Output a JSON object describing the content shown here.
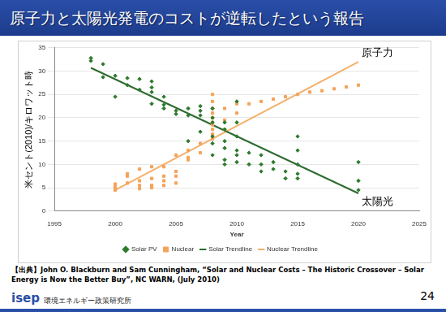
{
  "header": {
    "title": "原子力と太陽光発電のコストが逆転したという報告"
  },
  "chart_data": {
    "type": "scatter",
    "x_label": "Year",
    "y_label": "米セント(2010)/キロワット時",
    "xlim": [
      1995,
      2025
    ],
    "xticks": [
      1995,
      2000,
      2005,
      2010,
      2015,
      2020,
      2025
    ],
    "ylim": [
      0,
      35
    ],
    "yticks": [
      0,
      5,
      10,
      15,
      20,
      25,
      30,
      35
    ],
    "grid": true,
    "legend": "bottom",
    "series": [
      {
        "name": "Solar PV",
        "type": "scatter",
        "color": "#2d7a2d",
        "marker": "diamond",
        "x": [
          1998,
          1998,
          1999,
          1999,
          2000,
          2000,
          2001,
          2001,
          2002,
          2002,
          2003,
          2003,
          2003,
          2003,
          2004,
          2004,
          2004,
          2005,
          2005,
          2006,
          2006,
          2006,
          2007,
          2007,
          2007,
          2007,
          2008,
          2008,
          2008,
          2008,
          2008,
          2008,
          2009,
          2009,
          2009,
          2009,
          2009,
          2009,
          2010,
          2010,
          2010,
          2010,
          2010,
          2010,
          2011,
          2011,
          2012,
          2012,
          2012,
          2013,
          2013,
          2014,
          2014,
          2015,
          2015,
          2015,
          2015,
          2015,
          2020,
          2020,
          2020
        ],
        "values": [
          32.8,
          32.2,
          31.5,
          28.7,
          29,
          24.5,
          28.5,
          27,
          28.3,
          26,
          26.5,
          27.8,
          25.5,
          23,
          24.5,
          22.8,
          22,
          21.5,
          20.8,
          22,
          20.5,
          15,
          22.5,
          21.5,
          20.5,
          17,
          22,
          20,
          19,
          16,
          14.5,
          12,
          19,
          17.5,
          15,
          13.5,
          11,
          10,
          23.5,
          19,
          16,
          13,
          12,
          10.5,
          12.5,
          10,
          12,
          10,
          8.5,
          10.5,
          9,
          8.5,
          7,
          16,
          13,
          10,
          8,
          7,
          10.5,
          6.5,
          4.5
        ]
      },
      {
        "name": "Nuclear",
        "type": "scatter",
        "color": "#f5a35a",
        "marker": "square",
        "x": [
          2000,
          2000,
          2000,
          2000,
          2001,
          2001,
          2001,
          2002,
          2002,
          2002,
          2002,
          2003,
          2003,
          2003,
          2003,
          2004,
          2004,
          2004,
          2004,
          2005,
          2005,
          2005,
          2005,
          2006,
          2006,
          2006,
          2007,
          2007,
          2008,
          2008,
          2008,
          2008,
          2008,
          2008,
          2008,
          2008,
          2008,
          2008,
          2009,
          2009,
          2009,
          2010,
          2010,
          2011,
          2012,
          2013,
          2014,
          2015,
          2016,
          2017,
          2018,
          2019,
          2020
        ],
        "values": [
          5.8,
          5.2,
          4.8,
          4.5,
          7.5,
          8,
          6,
          9,
          6.5,
          5.5,
          4.8,
          9.5,
          7,
          5.5,
          5,
          9.5,
          7.5,
          6.5,
          5.5,
          12,
          8.5,
          7.5,
          6,
          11.5,
          11,
          13,
          14.5,
          12.5,
          25,
          23.5,
          22,
          21,
          20,
          19,
          18.5,
          17.5,
          16.5,
          15.5,
          22,
          19.5,
          17.5,
          21,
          23,
          23,
          23.5,
          24,
          24.5,
          25,
          25.5,
          25.8,
          26.2,
          26.6,
          27
        ]
      },
      {
        "name": "Solar Trendline",
        "type": "line",
        "color": "#2e6b30",
        "line_style": "solid",
        "x": [
          1998,
          2020
        ],
        "values": [
          30.7,
          3.8
        ]
      },
      {
        "name": "Nuclear Trendline",
        "type": "line",
        "color": "#f4b06a",
        "line_style": "solid",
        "x": [
          2000,
          2020
        ],
        "values": [
          4.5,
          32
        ]
      }
    ],
    "annotations": [
      {
        "text": "原子力",
        "series": "Nuclear Trendline"
      },
      {
        "text": "太陽光",
        "series": "Solar Trendline"
      }
    ]
  },
  "footer": {
    "source": "【出典】John O. Blackburn and Sam Cunningham, “Solar and Nuclear Costs – The Historic Crossover – Solar Energy is Now the Better Buy”, NC WARN, (July 2010)",
    "logo": "isep",
    "org": "環境エネルギー政策研究所",
    "page": 24
  }
}
